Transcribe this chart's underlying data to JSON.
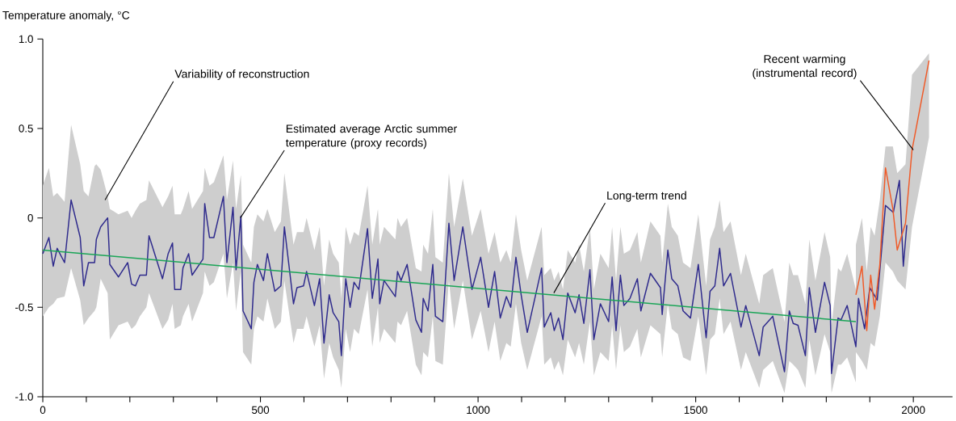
{
  "chart_data": {
    "type": "line",
    "ylabel": "Temperature anomaly, °C",
    "xlim": [
      0,
      2090
    ],
    "ylim": [
      -1,
      1
    ],
    "xticks": [
      0,
      {
        "value": 100,
        "label": null
      },
      {
        "value": 200,
        "label": null
      },
      {
        "value": 300,
        "label": null
      },
      {
        "value": 400,
        "label": null
      },
      500,
      {
        "value": 600,
        "label": null
      },
      {
        "value": 700,
        "label": null
      },
      {
        "value": 800,
        "label": null
      },
      {
        "value": 900,
        "label": null
      },
      1000,
      {
        "value": 1100,
        "label": null
      },
      {
        "value": 1200,
        "label": null
      },
      {
        "value": 1300,
        "label": null
      },
      {
        "value": 1400,
        "label": null
      },
      1500,
      {
        "value": 1600,
        "label": null
      },
      {
        "value": 1700,
        "label": null
      },
      {
        "value": 1800,
        "label": null
      },
      {
        "value": 1900,
        "label": null
      },
      2000
    ],
    "yticks": [
      {
        "value": -1,
        "label": "-1.0"
      },
      -0.5,
      0,
      0.5,
      {
        "value": 1,
        "label": "1.0"
      }
    ],
    "line_style": "solid",
    "series": [
      {
        "color": "#2e2a8c",
        "x": [
          0,
          14,
          24,
          33,
          50,
          65,
          86,
          94,
          105,
          119,
          123,
          133,
          149,
          154,
          174,
          195,
          204,
          213,
          223,
          238,
          244,
          275,
          288,
          298,
          303,
          317,
          322,
          335,
          343,
          368,
          372,
          383,
          393,
          415,
          423,
          437,
          444,
          455,
          460,
          479,
          485,
          493,
          507,
          516,
          533,
          547,
          555,
          576,
          584,
          599,
          606,
          624,
          636,
          646,
          658,
          667,
          680,
          686,
          696,
          706,
          715,
          726,
          746,
          757,
          770,
          774,
          784,
          810,
          815,
          823,
          837,
          857,
          870,
          874,
          885,
          896,
          902,
          919,
          933,
          945,
          965,
          986,
          1006,
          1024,
          1038,
          1051,
          1065,
          1075,
          1087,
          1099,
          1113,
          1146,
          1152,
          1167,
          1175,
          1185,
          1195,
          1206,
          1223,
          1232,
          1243,
          1257,
          1266,
          1281,
          1300,
          1308,
          1317,
          1327,
          1335,
          1349,
          1366,
          1374,
          1396,
          1419,
          1423,
          1436,
          1445,
          1459,
          1471,
          1488,
          1506,
          1524,
          1533,
          1544,
          1555,
          1564,
          1580,
          1604,
          1615,
          1646,
          1655,
          1677,
          1704,
          1715,
          1724,
          1735,
          1752,
          1761,
          1775,
          1796,
          1809,
          1812,
          1827,
          1834,
          1848,
          1868,
          1874,
          1888,
          1900,
          1917,
          1936,
          1954,
          1968,
          1977,
          1985
        ],
        "values": [
          -0.2,
          -0.11,
          -0.27,
          -0.17,
          -0.25,
          0.1,
          -0.11,
          -0.38,
          -0.25,
          -0.25,
          -0.12,
          -0.05,
          0.0,
          -0.26,
          -0.33,
          -0.25,
          -0.37,
          -0.38,
          -0.32,
          -0.32,
          -0.1,
          -0.34,
          -0.2,
          -0.14,
          -0.4,
          -0.4,
          -0.28,
          -0.2,
          -0.32,
          -0.23,
          0.08,
          -0.11,
          -0.11,
          0.12,
          -0.25,
          0.06,
          -0.29,
          0.01,
          -0.52,
          -0.62,
          -0.36,
          -0.26,
          -0.35,
          -0.2,
          -0.41,
          -0.38,
          -0.05,
          -0.48,
          -0.39,
          -0.38,
          -0.3,
          -0.49,
          -0.34,
          -0.7,
          -0.43,
          -0.53,
          -0.58,
          -0.77,
          -0.34,
          -0.5,
          -0.36,
          -0.4,
          -0.06,
          -0.45,
          -0.23,
          -0.48,
          -0.35,
          -0.44,
          -0.3,
          -0.35,
          -0.26,
          -0.57,
          -0.64,
          -0.45,
          -0.52,
          -0.26,
          -0.55,
          -0.58,
          -0.03,
          -0.35,
          -0.05,
          -0.4,
          -0.22,
          -0.5,
          -0.3,
          -0.56,
          -0.44,
          -0.5,
          -0.22,
          -0.43,
          -0.64,
          -0.28,
          -0.61,
          -0.53,
          -0.63,
          -0.56,
          -0.68,
          -0.42,
          -0.53,
          -0.43,
          -0.59,
          -0.29,
          -0.68,
          -0.48,
          -0.58,
          -0.33,
          -0.63,
          -0.32,
          -0.49,
          -0.45,
          -0.34,
          -0.52,
          -0.31,
          -0.39,
          -0.54,
          -0.18,
          -0.34,
          -0.38,
          -0.52,
          -0.56,
          -0.26,
          -0.67,
          -0.41,
          -0.38,
          -0.17,
          -0.38,
          -0.31,
          -0.61,
          -0.49,
          -0.77,
          -0.61,
          -0.55,
          -0.86,
          -0.52,
          -0.59,
          -0.6,
          -0.77,
          -0.39,
          -0.64,
          -0.36,
          -0.49,
          -0.87,
          -0.56,
          -0.57,
          -0.49,
          -0.72,
          -0.45,
          -0.62,
          -0.39,
          -0.46,
          0.07,
          0.03,
          0.21,
          -0.27,
          -0.04
        ],
        "lower": [
          -0.55,
          -0.5,
          -0.48,
          -0.45,
          -0.44,
          -0.28,
          -0.46,
          -0.6,
          -0.56,
          -0.52,
          -0.5,
          -0.34,
          -0.42,
          -0.68,
          -0.6,
          -0.58,
          -0.62,
          -0.6,
          -0.55,
          -0.5,
          -0.42,
          -0.62,
          -0.57,
          -0.48,
          -0.62,
          -0.6,
          -0.55,
          -0.48,
          -0.58,
          -0.42,
          -0.3,
          -0.38,
          -0.36,
          -0.2,
          -0.45,
          -0.25,
          -0.52,
          -0.3,
          -0.75,
          -0.82,
          -0.62,
          -0.55,
          -0.58,
          -0.45,
          -0.62,
          -0.58,
          -0.35,
          -0.7,
          -0.62,
          -0.62,
          -0.55,
          -0.72,
          -0.6,
          -0.9,
          -0.7,
          -0.78,
          -0.85,
          -0.95,
          -0.62,
          -0.75,
          -0.62,
          -0.65,
          -0.4,
          -0.72,
          -0.5,
          -0.7,
          -0.62,
          -0.7,
          -0.58,
          -0.6,
          -0.52,
          -0.82,
          -0.88,
          -0.75,
          -0.78,
          -0.55,
          -0.8,
          -0.82,
          -0.35,
          -0.62,
          -0.35,
          -0.68,
          -0.52,
          -0.75,
          -0.58,
          -0.8,
          -0.7,
          -0.72,
          -0.48,
          -0.7,
          -0.85,
          -0.55,
          -0.82,
          -0.78,
          -0.85,
          -0.8,
          -0.88,
          -0.68,
          -0.78,
          -0.7,
          -0.82,
          -0.58,
          -0.88,
          -0.75,
          -0.8,
          -0.6,
          -0.85,
          -0.6,
          -0.75,
          -0.72,
          -0.62,
          -0.78,
          -0.6,
          -0.65,
          -0.78,
          -0.48,
          -0.62,
          -0.65,
          -0.78,
          -0.8,
          -0.55,
          -0.88,
          -0.68,
          -0.65,
          -0.45,
          -0.65,
          -0.58,
          -0.85,
          -0.75,
          -0.95,
          -0.85,
          -0.8,
          -0.98,
          -0.8,
          -0.82,
          -0.85,
          -0.95,
          -0.68,
          -0.88,
          -0.65,
          -0.75,
          -0.98,
          -0.82,
          -0.82,
          -0.78,
          -0.92,
          null,
          null,
          null,
          null,
          null,
          null,
          null,
          null,
          null
        ],
        "upper": [
          0.18,
          0.28,
          0.12,
          0.14,
          0.09,
          0.52,
          0.3,
          0.15,
          0.12,
          0.29,
          0.3,
          0.27,
          0.12,
          0.05,
          0.02,
          0.04,
          0.0,
          0.04,
          0.08,
          0.1,
          0.21,
          0.06,
          0.12,
          0.18,
          0.02,
          0.02,
          0.05,
          0.15,
          0.05,
          0.15,
          0.28,
          0.18,
          0.2,
          0.35,
          0.1,
          0.32,
          0.05,
          0.24,
          -0.15,
          -0.25,
          -0.05,
          0.02,
          -0.02,
          0.05,
          -0.08,
          -0.02,
          0.25,
          -0.15,
          -0.08,
          -0.08,
          0.0,
          -0.18,
          -0.05,
          -0.38,
          -0.12,
          -0.2,
          -0.25,
          -0.45,
          -0.05,
          -0.15,
          -0.08,
          -0.1,
          0.18,
          -0.15,
          0.05,
          -0.15,
          -0.05,
          -0.12,
          0.0,
          -0.05,
          0.0,
          -0.28,
          -0.3,
          -0.15,
          -0.2,
          0.05,
          -0.22,
          -0.25,
          0.25,
          -0.05,
          0.22,
          -0.1,
          0.05,
          -0.2,
          -0.08,
          -0.25,
          -0.18,
          -0.25,
          0.02,
          -0.18,
          -0.35,
          -0.05,
          -0.32,
          -0.28,
          -0.35,
          -0.3,
          -0.4,
          -0.18,
          -0.25,
          -0.15,
          -0.3,
          -0.05,
          -0.4,
          -0.2,
          -0.28,
          -0.05,
          -0.35,
          -0.05,
          -0.2,
          -0.18,
          -0.08,
          -0.25,
          -0.02,
          -0.1,
          -0.25,
          0.08,
          -0.05,
          -0.1,
          -0.25,
          -0.28,
          0.02,
          -0.38,
          -0.12,
          -0.05,
          0.1,
          -0.08,
          -0.02,
          -0.32,
          -0.2,
          -0.48,
          -0.32,
          -0.28,
          -0.58,
          -0.25,
          -0.32,
          -0.32,
          -0.48,
          -0.12,
          -0.35,
          -0.08,
          -0.22,
          -0.6,
          -0.28,
          -0.3,
          -0.2,
          -0.4,
          null,
          null,
          null,
          null,
          null,
          null,
          null,
          null,
          null
        ]
      },
      {
        "color": "#f05a28",
        "x": [
          1868,
          1882,
          1893,
          1902,
          1911,
          1923,
          1936,
          1953,
          1963,
          1982,
          1997,
          2036
        ],
        "values": [
          -0.43,
          -0.27,
          -0.63,
          -0.32,
          -0.51,
          -0.26,
          0.28,
          0.05,
          -0.18,
          -0.03,
          0.38,
          0.88
        ],
        "lower": [
          -0.75,
          -0.8,
          -0.85,
          -0.7,
          -0.72,
          -0.55,
          -0.25,
          -0.3,
          -0.35,
          -0.4,
          -0.05,
          0.45
        ],
        "upper": [
          -0.15,
          0.0,
          -0.3,
          -0.05,
          -0.1,
          0.1,
          0.4,
          0.4,
          0.25,
          0.3,
          0.8,
          0.92
        ]
      },
      {
        "type": "line",
        "color": "#1aa557",
        "x": [
          0,
          1868
        ],
        "values": [
          -0.18,
          -0.58
        ]
      }
    ],
    "annotations": [
      {
        "text": "Variability of reconstruction",
        "x": 143,
        "y": 0.1
      },
      {
        "text": "Estimated average Arctic summer temperature (proxy records)",
        "x": 454,
        "y": 0.0
      },
      {
        "text": "Long-term trend",
        "x": 1174,
        "y": -0.42
      },
      {
        "text": "Recent warming (instrumental record)",
        "x": 2000,
        "y": 0.38
      }
    ]
  }
}
